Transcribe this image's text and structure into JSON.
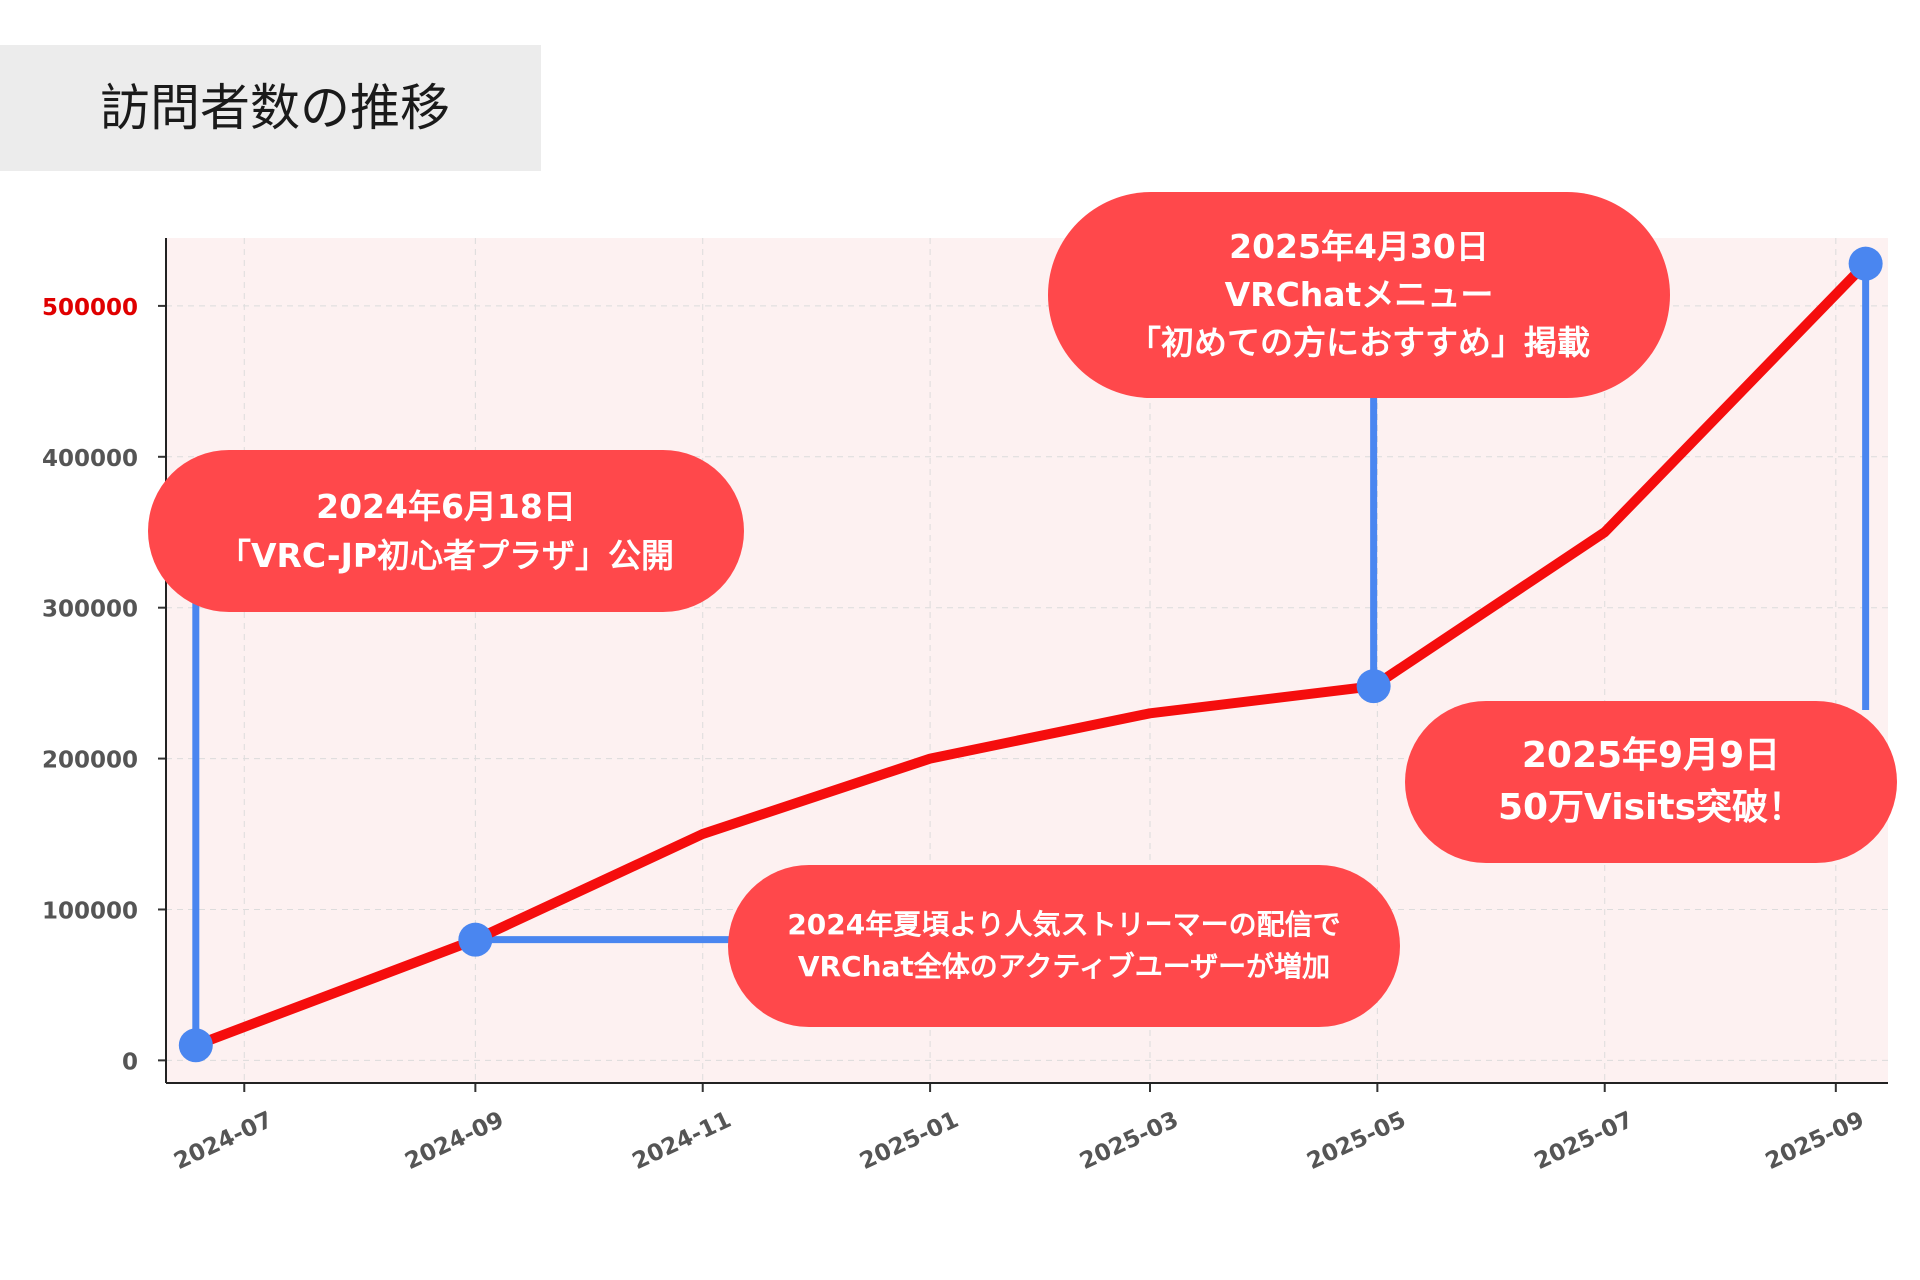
{
  "title": "訪問者数の推移",
  "chart_data": {
    "type": "line",
    "xlabel": "",
    "ylabel": "",
    "x_ticks": [
      "2024-07",
      "2024-09",
      "2024-11",
      "2025-01",
      "2025-03",
      "2025-05",
      "2025-07",
      "2025-09"
    ],
    "y_ticks": [
      "0",
      "100000",
      "200000",
      "300000",
      "400000",
      "500000"
    ],
    "highlight_y_tick": "500000",
    "ylim": [
      -15000,
      545000
    ],
    "xlim": [
      "2024-06-10",
      "2025-09-15"
    ],
    "grid": true,
    "series": [
      {
        "color": "#f50d0d",
        "points": [
          {
            "x": "2024-06-18",
            "y": 10000
          },
          {
            "x": "2024-09-01",
            "y": 80000
          },
          {
            "x": "2024-11-01",
            "y": 150000
          },
          {
            "x": "2025-01-01",
            "y": 200000
          },
          {
            "x": "2025-03-01",
            "y": 230000
          },
          {
            "x": "2025-04-30",
            "y": 248000
          },
          {
            "x": "2025-07-01",
            "y": 350000
          },
          {
            "x": "2025-09-09",
            "y": 528000
          }
        ]
      }
    ],
    "markers": [
      {
        "x": "2024-06-18",
        "y": 10000
      },
      {
        "x": "2024-09-01",
        "y": 80000
      },
      {
        "x": "2025-04-30",
        "y": 248000
      },
      {
        "x": "2025-09-09",
        "y": 528000
      }
    ],
    "annotations": [
      {
        "lines": [
          "2024年6月18日",
          "「VRC-JP初心者プラザ」公開"
        ]
      },
      {
        "lines": [
          "2025年4月30日",
          "VRChatメニュー",
          "「初めての方におすすめ」掲載"
        ]
      },
      {
        "lines": [
          "2025年9月9日",
          "50万Visits突破！"
        ]
      },
      {
        "lines": [
          "2024年夏頃より人気ストリーマーの配信で",
          "VRChat全体のアクティブユーザーが増加"
        ]
      }
    ],
    "colors": {
      "line": "#f50d0d",
      "marker": "#4a86f0",
      "connector": "#4a86f0",
      "callout": "#ff484b",
      "plot_background": "#fdf1f1",
      "highlight_tick": "#e00000",
      "tick_text": "#555555"
    }
  }
}
